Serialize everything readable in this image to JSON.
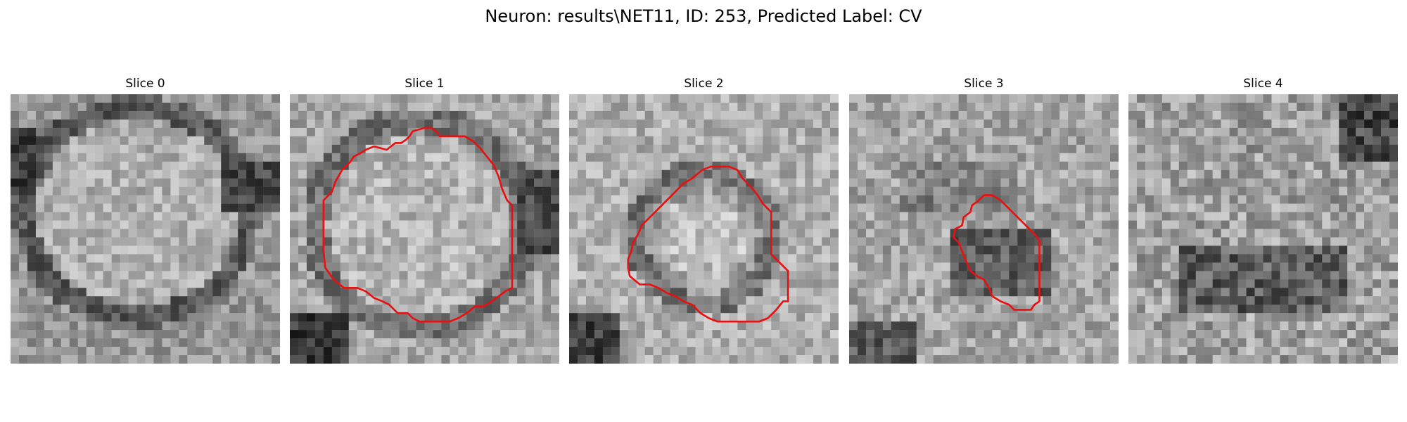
{
  "figure": {
    "title": "Neuron: results\\NET11, ID: 253, Predicted Label: CV"
  },
  "slices": [
    {
      "title": "Slice 0",
      "has_contour": false
    },
    {
      "title": "Slice 1",
      "has_contour": true
    },
    {
      "title": "Slice 2",
      "has_contour": true
    },
    {
      "title": "Slice 3",
      "has_contour": true
    },
    {
      "title": "Slice 4",
      "has_contour": false
    }
  ],
  "colors": {
    "contour": "#e81010",
    "background": "#ffffff"
  }
}
